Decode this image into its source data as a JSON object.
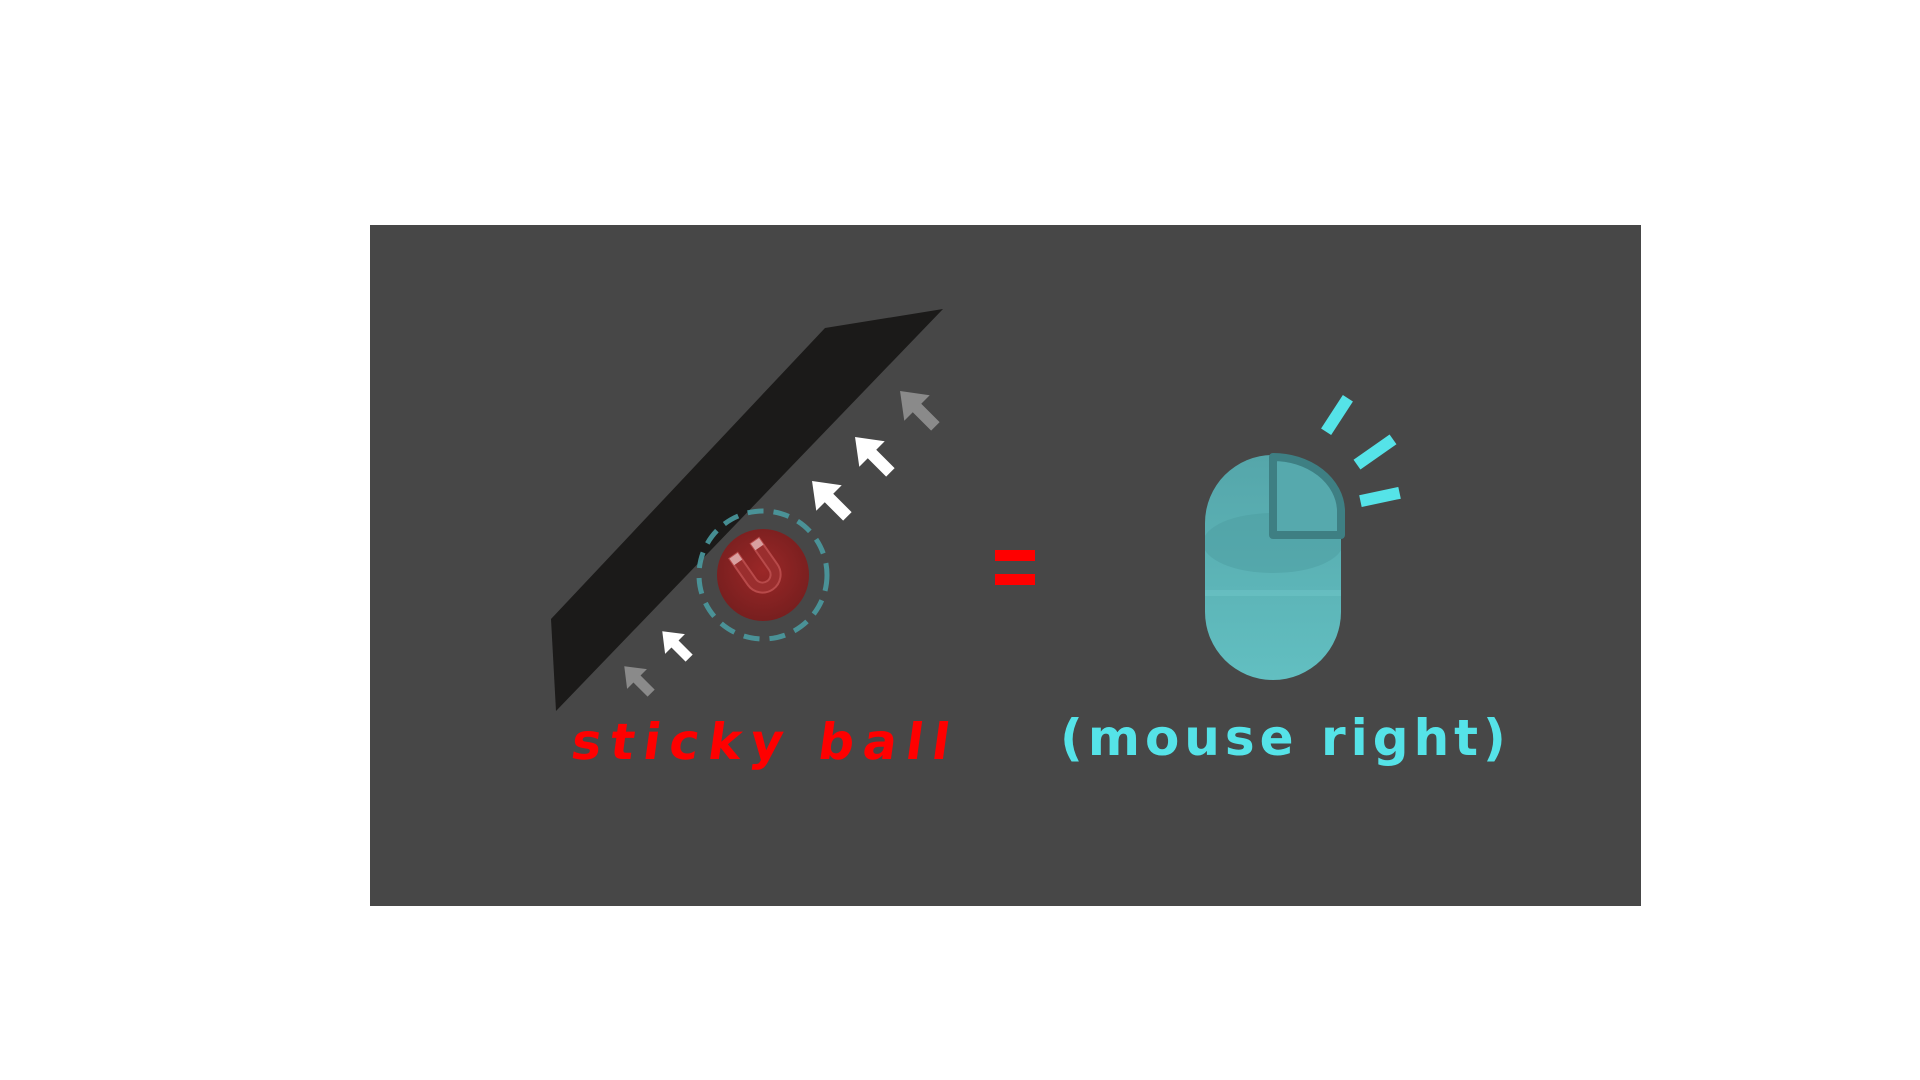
{
  "labels": {
    "left": "sticky ball",
    "right": "(mouse right)"
  },
  "icons": {
    "ramp": "ramp-icon",
    "ball": "sticky-ball-icon",
    "magnet": "magnet-icon",
    "arrows": "arrow-trail-icon",
    "equals": "equals-icon",
    "mouse": "mouse-right-button-icon",
    "click_rays": "click-rays-icon"
  },
  "colors": {
    "background": "#ffffff",
    "panel": "#474747",
    "ramp": "#1b1a19",
    "ball": "#8b1e1e",
    "ring": "#4a9aa0",
    "sticky_text": "#ff0000",
    "mouse_text": "#55e3e8",
    "mouse_body": "#5bb7ba",
    "arrow_white": "#ffffff",
    "arrow_gray": "#8a8a8a"
  }
}
